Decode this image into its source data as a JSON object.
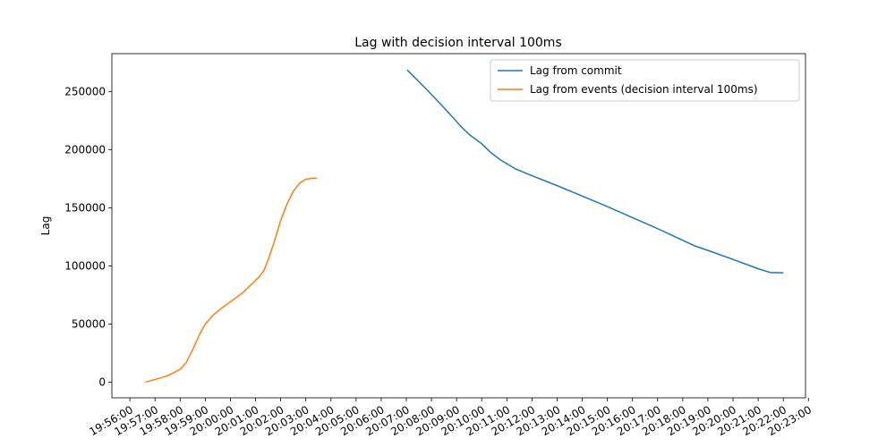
{
  "chart_data": {
    "type": "line",
    "title": "Lag with decision interval 100ms",
    "xlabel": "",
    "ylabel": "Lag",
    "x_axis_type": "time",
    "xlim": [
      "19:55:17",
      "20:22:53"
    ],
    "ylim": [
      -13500,
      282500
    ],
    "x_ticks": [
      "19:56:00",
      "19:57:00",
      "19:58:00",
      "19:59:00",
      "20:00:00",
      "20:01:00",
      "20:02:00",
      "20:03:00",
      "20:04:00",
      "20:05:00",
      "20:06:00",
      "20:07:00",
      "20:08:00",
      "20:09:00",
      "20:10:00",
      "20:11:00",
      "20:12:00",
      "20:13:00",
      "20:14:00",
      "20:15:00",
      "20:16:00",
      "20:17:00",
      "20:18:00",
      "20:19:00",
      "20:20:00",
      "20:21:00",
      "20:22:00",
      "20:23:00"
    ],
    "y_ticks": [
      "0",
      "50000",
      "100000",
      "150000",
      "200000",
      "250000"
    ],
    "y_tick_values": [
      0,
      50000,
      100000,
      150000,
      200000,
      250000
    ],
    "grid": false,
    "legend_position": "top-right",
    "series": [
      {
        "name": "Lag from commit",
        "color": "#1f77b4",
        "points": [
          [
            "20:07:02",
            268500
          ],
          [
            "20:07:45",
            253000
          ],
          [
            "20:08:30",
            236000
          ],
          [
            "20:09:10",
            220000
          ],
          [
            "20:09:30",
            213000
          ],
          [
            "20:10:00",
            205000
          ],
          [
            "20:10:20",
            198000
          ],
          [
            "20:10:45",
            191000
          ],
          [
            "20:11:20",
            183500
          ],
          [
            "20:12:00",
            177500
          ],
          [
            "20:13:00",
            169000
          ],
          [
            "20:14:00",
            160000
          ],
          [
            "20:15:00",
            151000
          ],
          [
            "20:16:00",
            141500
          ],
          [
            "20:17:00",
            132000
          ],
          [
            "20:18:00",
            122000
          ],
          [
            "20:18:30",
            117000
          ],
          [
            "20:19:10",
            112000
          ],
          [
            "20:20:00",
            105500
          ],
          [
            "20:21:00",
            97500
          ],
          [
            "20:21:30",
            94200
          ],
          [
            "20:22:00",
            94000
          ]
        ]
      },
      {
        "name": "Lag from events (decision interval 100ms)",
        "color": "#ff7f0e",
        "points": [
          [
            "19:56:37",
            0
          ],
          [
            "19:57:00",
            2200
          ],
          [
            "19:57:30",
            5500
          ],
          [
            "19:58:00",
            11000
          ],
          [
            "19:58:15",
            17000
          ],
          [
            "19:58:30",
            28000
          ],
          [
            "19:58:45",
            40000
          ],
          [
            "19:59:00",
            50000
          ],
          [
            "19:59:20",
            58000
          ],
          [
            "19:59:40",
            64000
          ],
          [
            "20:00:00",
            69000
          ],
          [
            "20:00:30",
            77000
          ],
          [
            "20:00:50",
            84000
          ],
          [
            "20:01:10",
            91000
          ],
          [
            "20:01:20",
            96000
          ],
          [
            "20:01:30",
            105000
          ],
          [
            "20:01:45",
            121000
          ],
          [
            "20:02:00",
            139000
          ],
          [
            "20:02:15",
            153000
          ],
          [
            "20:02:30",
            164000
          ],
          [
            "20:02:45",
            171000
          ],
          [
            "20:03:00",
            174500
          ],
          [
            "20:03:15",
            175300
          ],
          [
            "20:03:27",
            175300
          ]
        ]
      }
    ]
  }
}
